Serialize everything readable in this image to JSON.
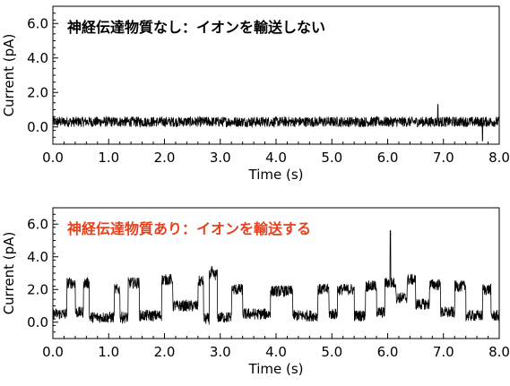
{
  "chart_data": [
    {
      "type": "line",
      "title": "",
      "annotation": "神経伝達物質なし：イオンを輸送しない",
      "annotation_color": "#000000",
      "xlabel": "Time (s)",
      "ylabel": "Current (pA)",
      "xlim": [
        0.0,
        8.0
      ],
      "ylim": [
        -1.0,
        7.0
      ],
      "xticks": [
        "0.0",
        "1.0",
        "2.0",
        "3.0",
        "4.0",
        "5.0",
        "6.0",
        "7.0",
        "8.0"
      ],
      "yticks": [
        "0.0",
        "2.0",
        "4.0",
        "6.0"
      ],
      "trace_color": "#000000",
      "grid": false,
      "series": [
        {
          "description_type": "noise trace",
          "segments": [
            {
              "x": [
                0.0,
                8.0
              ],
              "level": 0.3
            }
          ],
          "noise_amplitude": 0.3,
          "spikes": [
            {
              "x": 6.9,
              "y": 1.3
            },
            {
              "x": 7.7,
              "y": -0.8
            }
          ]
        }
      ]
    },
    {
      "type": "line",
      "title": "",
      "annotation": "神経伝達物質あり：イオンを輸送する",
      "annotation_color": "#e8401c",
      "xlabel": "Time (s)",
      "ylabel": "Current (pA)",
      "xlim": [
        0.0,
        8.0
      ],
      "ylim": [
        -1.0,
        7.0
      ],
      "xticks": [
        "0.0",
        "1.0",
        "2.0",
        "3.0",
        "4.0",
        "5.0",
        "6.0",
        "7.0",
        "8.0"
      ],
      "yticks": [
        "0.0",
        "2.0",
        "4.0",
        "6.0"
      ],
      "trace_color": "#000000",
      "grid": false,
      "series": [
        {
          "description_type": "channel openings",
          "segments": [
            {
              "x": [
                0.0,
                0.25
              ],
              "level": 0.5
            },
            {
              "x": [
                0.25,
                0.4
              ],
              "level": 2.4
            },
            {
              "x": [
                0.4,
                0.55
              ],
              "level": 0.6
            },
            {
              "x": [
                0.55,
                0.65
              ],
              "level": 2.4
            },
            {
              "x": [
                0.65,
                1.1
              ],
              "level": 0.3
            },
            {
              "x": [
                1.1,
                1.2
              ],
              "level": 2.0
            },
            {
              "x": [
                1.2,
                1.35
              ],
              "level": 0.3
            },
            {
              "x": [
                1.35,
                1.55
              ],
              "level": 2.4
            },
            {
              "x": [
                1.55,
                1.95
              ],
              "level": 0.4
            },
            {
              "x": [
                1.95,
                2.15
              ],
              "level": 2.6
            },
            {
              "x": [
                2.15,
                2.6
              ],
              "level": 1.0
            },
            {
              "x": [
                2.6,
                2.7
              ],
              "level": 2.5
            },
            {
              "x": [
                2.7,
                2.8
              ],
              "level": 0.2
            },
            {
              "x": [
                2.8,
                2.95
              ],
              "level": 2.9
            },
            {
              "x": [
                2.95,
                3.2
              ],
              "level": 0.3
            },
            {
              "x": [
                3.2,
                3.4
              ],
              "level": 2.0
            },
            {
              "x": [
                3.4,
                3.9
              ],
              "level": 0.5
            },
            {
              "x": [
                3.9,
                4.3
              ],
              "level": 1.9
            },
            {
              "x": [
                4.3,
                4.75
              ],
              "level": 0.4
            },
            {
              "x": [
                4.75,
                4.95
              ],
              "level": 2.0
            },
            {
              "x": [
                4.95,
                5.1
              ],
              "level": 0.5
            },
            {
              "x": [
                5.1,
                5.4
              ],
              "level": 2.0
            },
            {
              "x": [
                5.4,
                5.6
              ],
              "level": 0.4
            },
            {
              "x": [
                5.6,
                5.8
              ],
              "level": 2.2
            },
            {
              "x": [
                5.8,
                5.95
              ],
              "level": 0.6
            },
            {
              "x": [
                5.95,
                6.15
              ],
              "level": 2.4
            },
            {
              "x": [
                6.15,
                6.35
              ],
              "level": 1.5
            },
            {
              "x": [
                6.35,
                6.5
              ],
              "level": 2.6
            },
            {
              "x": [
                6.5,
                6.75
              ],
              "level": 1.1
            },
            {
              "x": [
                6.75,
                6.95
              ],
              "level": 2.3
            },
            {
              "x": [
                6.95,
                7.2
              ],
              "level": 0.6
            },
            {
              "x": [
                7.2,
                7.4
              ],
              "level": 2.2
            },
            {
              "x": [
                7.4,
                7.7
              ],
              "level": 0.4
            },
            {
              "x": [
                7.7,
                7.85
              ],
              "level": 2.0
            },
            {
              "x": [
                7.85,
                8.0
              ],
              "level": 0.4
            }
          ],
          "noise_amplitude": 0.35,
          "spikes": [
            {
              "x": 6.05,
              "y": 5.6
            },
            {
              "x": 2.85,
              "y": 3.4
            }
          ]
        }
      ]
    }
  ]
}
